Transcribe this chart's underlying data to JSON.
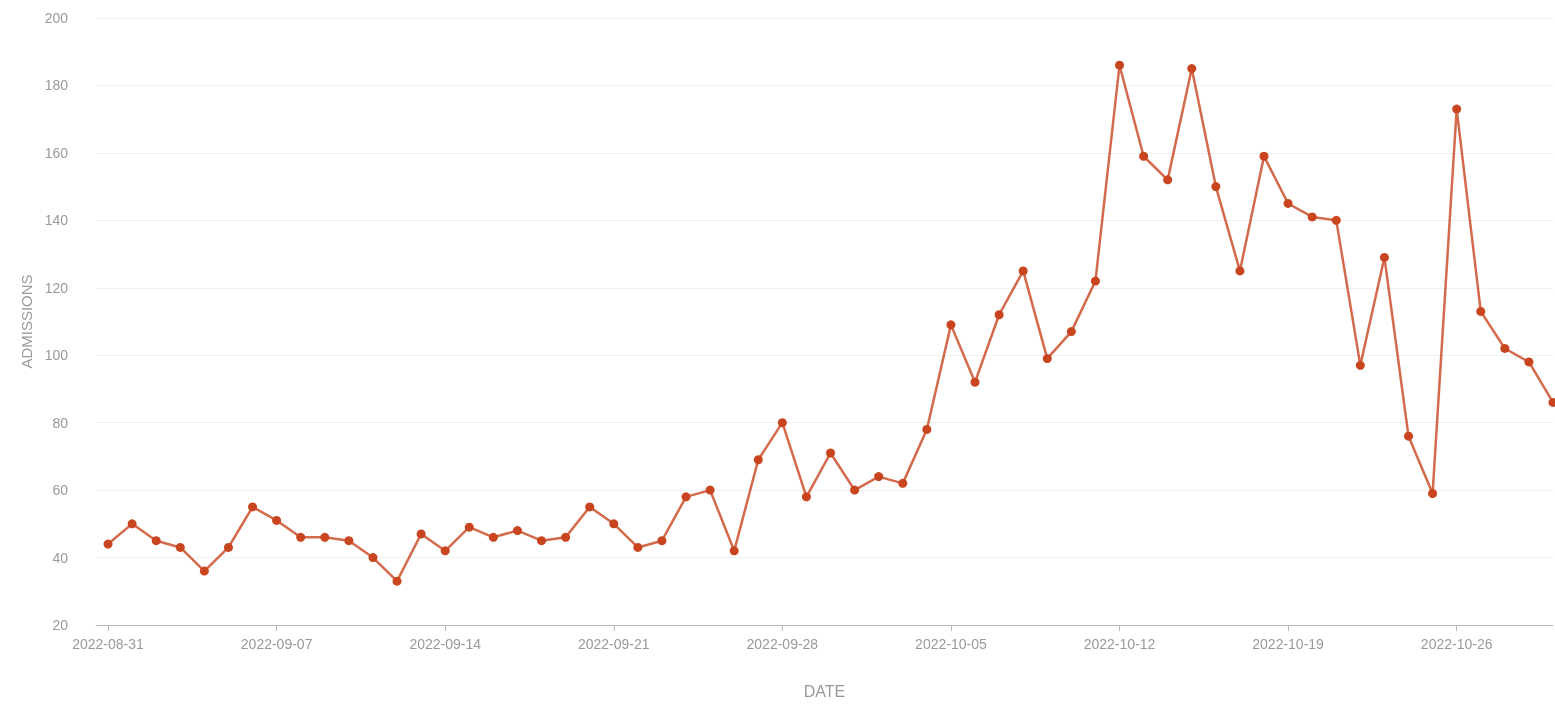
{
  "chart_data": {
    "type": "line",
    "xlabel": "DATE",
    "ylabel": "ADMISSIONS",
    "x": [
      "2022-08-31",
      "2022-09-01",
      "2022-09-02",
      "2022-09-03",
      "2022-09-04",
      "2022-09-05",
      "2022-09-06",
      "2022-09-07",
      "2022-09-08",
      "2022-09-09",
      "2022-09-10",
      "2022-09-11",
      "2022-09-12",
      "2022-09-13",
      "2022-09-14",
      "2022-09-15",
      "2022-09-16",
      "2022-09-17",
      "2022-09-18",
      "2022-09-19",
      "2022-09-20",
      "2022-09-21",
      "2022-09-22",
      "2022-09-23",
      "2022-09-24",
      "2022-09-25",
      "2022-09-26",
      "2022-09-27",
      "2022-09-28",
      "2022-09-29",
      "2022-09-30",
      "2022-10-01",
      "2022-10-02",
      "2022-10-03",
      "2022-10-04",
      "2022-10-05",
      "2022-10-06",
      "2022-10-07",
      "2022-10-08",
      "2022-10-09",
      "2022-10-10",
      "2022-10-11",
      "2022-10-12",
      "2022-10-13",
      "2022-10-14",
      "2022-10-15",
      "2022-10-16",
      "2022-10-17",
      "2022-10-18",
      "2022-10-19",
      "2022-10-20",
      "2022-10-21",
      "2022-10-22",
      "2022-10-23",
      "2022-10-24",
      "2022-10-25",
      "2022-10-26",
      "2022-10-27",
      "2022-10-28",
      "2022-10-29",
      "2022-10-30"
    ],
    "series": [
      {
        "color": "#c8451f",
        "values": [
          44,
          50,
          45,
          43,
          36,
          43,
          55,
          51,
          46,
          46,
          45,
          40,
          33,
          47,
          42,
          49,
          46,
          48,
          45,
          46,
          55,
          50,
          43,
          45,
          58,
          60,
          42,
          69,
          80,
          58,
          71,
          60,
          64,
          62,
          78,
          109,
          92,
          112,
          125,
          99,
          107,
          122,
          186,
          159,
          152,
          185,
          150,
          125,
          159,
          145,
          141,
          140,
          97,
          129,
          76,
          59,
          173,
          113,
          102,
          98,
          86
        ]
      }
    ],
    "xlim": [
      "2022-08-30T12:00",
      "2022-10-30"
    ],
    "xticks": [
      "2022-08-31",
      "2022-09-07",
      "2022-09-14",
      "2022-09-21",
      "2022-09-28",
      "2022-10-05",
      "2022-10-12",
      "2022-10-19",
      "2022-10-26"
    ],
    "ylim": [
      20,
      200
    ],
    "yticks": [
      20,
      40,
      60,
      80,
      100,
      120,
      140,
      160,
      180,
      200
    ],
    "grid": "y",
    "marker": "circle",
    "line_style": "solid"
  }
}
